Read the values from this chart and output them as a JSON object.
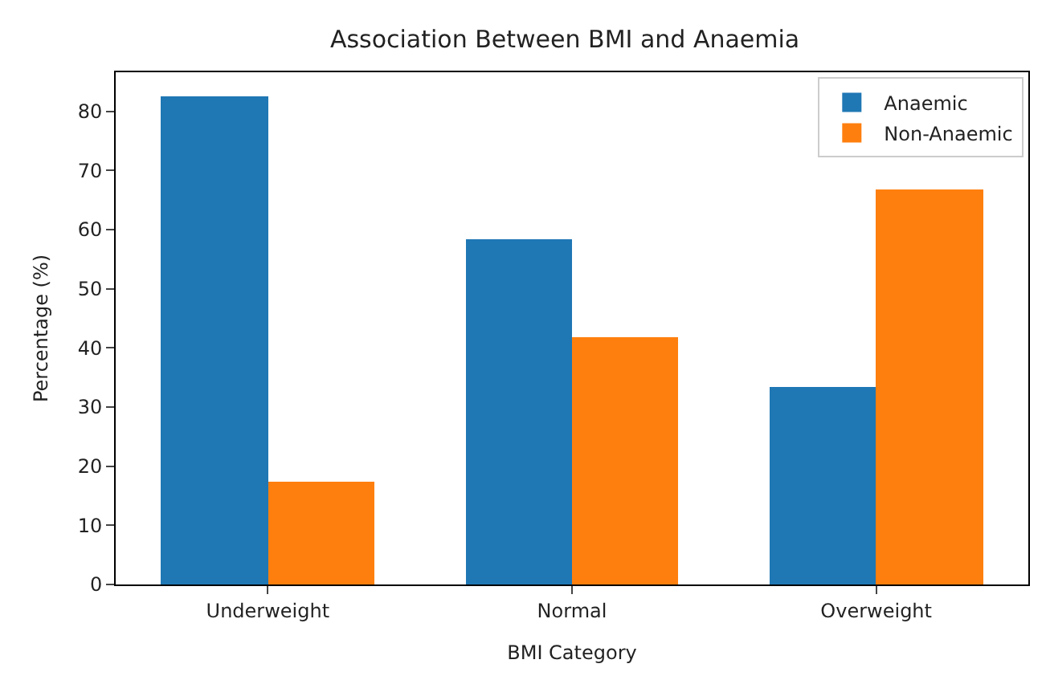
{
  "chart_data": {
    "type": "bar",
    "title": "Association Between BMI and Anaemia",
    "xlabel": "BMI Category",
    "ylabel": "Percentage (%)",
    "categories": [
      "Underweight",
      "Normal",
      "Overweight"
    ],
    "series": [
      {
        "name": "Anaemic",
        "color": "#1f77b4",
        "values": [
          82.5,
          58.3,
          33.3
        ]
      },
      {
        "name": "Non-Anaemic",
        "color": "#ff7f0e",
        "values": [
          17.5,
          41.7,
          66.7
        ]
      }
    ],
    "ylim": [
      0,
      86.6
    ],
    "yticks": [
      0,
      10,
      20,
      30,
      40,
      50,
      60,
      70,
      80
    ],
    "legend": "top right"
  }
}
